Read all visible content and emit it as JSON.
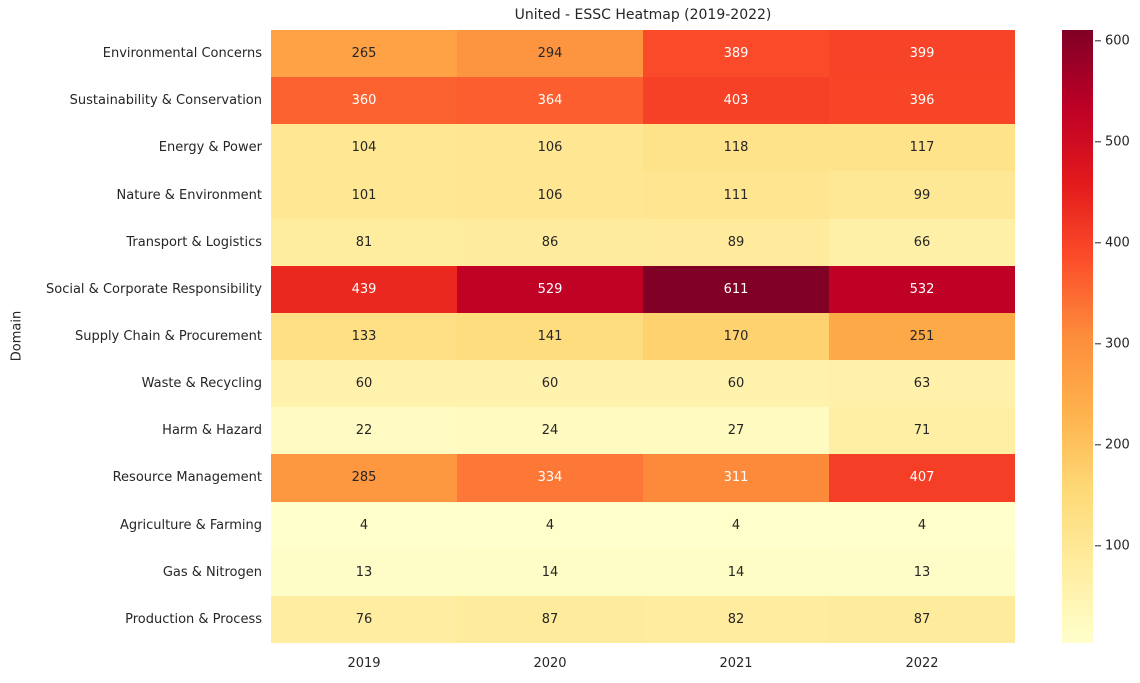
{
  "figure": {
    "background": "#ffffff",
    "text_color": "#262626",
    "annotation_dark": "#262626",
    "annotation_light": "#ffffff",
    "luminance_threshold": 0.408
  },
  "chart_data": {
    "type": "heatmap",
    "title": "United - ESSC Heatmap (2019-2022)",
    "xlabel": "",
    "ylabel": "Domain",
    "x_tick_labels": [
      "2019",
      "2020",
      "2021",
      "2022"
    ],
    "y_tick_labels": [
      "Environmental Concerns",
      "Sustainability & Conservation",
      "Energy & Power",
      "Nature & Environment",
      "Transport & Logistics",
      "Social & Corporate Responsibility",
      "Supply Chain & Procurement",
      "Waste & Recycling",
      "Harm & Hazard",
      "Resource Management",
      "Agriculture & Farming",
      "Gas & Nitrogen",
      "Production & Process"
    ],
    "values": [
      [
        265,
        294,
        389,
        399
      ],
      [
        360,
        364,
        403,
        396
      ],
      [
        104,
        106,
        118,
        117
      ],
      [
        101,
        106,
        111,
        99
      ],
      [
        81,
        86,
        89,
        66
      ],
      [
        439,
        529,
        611,
        532
      ],
      [
        133,
        141,
        170,
        251
      ],
      [
        60,
        60,
        60,
        63
      ],
      [
        22,
        24,
        27,
        71
      ],
      [
        285,
        334,
        311,
        407
      ],
      [
        4,
        4,
        4,
        4
      ],
      [
        13,
        14,
        14,
        13
      ],
      [
        76,
        87,
        82,
        87
      ]
    ],
    "vmin": 4,
    "vmax": 611,
    "colormap": "YlOrRd",
    "colormap_stops": [
      "#ffffcc",
      "#ffeda0",
      "#fed976",
      "#feb24c",
      "#fd8d3c",
      "#fc4e2a",
      "#e31a1c",
      "#bd0026",
      "#800026"
    ],
    "annotated": true,
    "grid": false,
    "colorbar": {
      "position": "right",
      "ticks": [
        100,
        200,
        300,
        400,
        500,
        600
      ]
    }
  }
}
